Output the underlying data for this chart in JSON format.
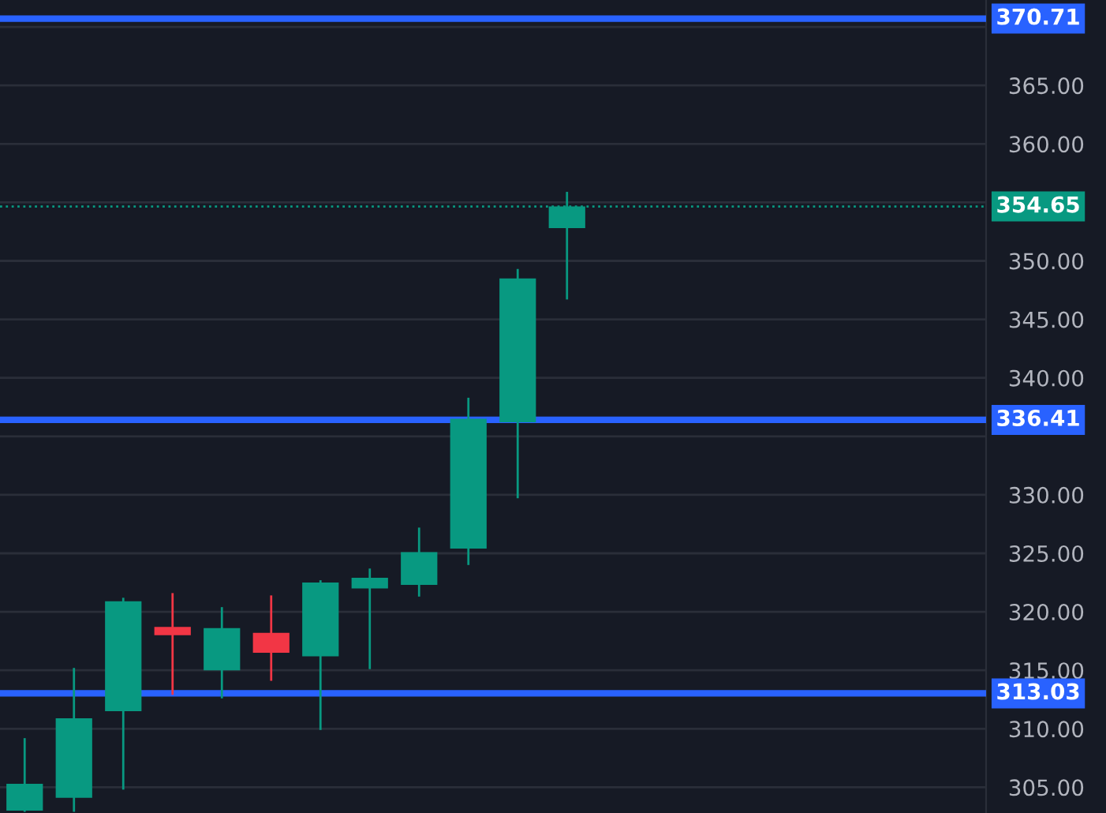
{
  "chart_data": {
    "type": "candlestick",
    "categories": [
      null,
      null,
      null,
      null,
      null,
      null,
      null,
      null,
      null,
      null,
      null,
      null,
      null,
      null,
      null,
      null,
      null,
      null,
      null,
      null
    ],
    "ohlc": [
      [
        303.0,
        309.2,
        302.9,
        305.3
      ],
      [
        304.1,
        315.2,
        302.9,
        310.9
      ],
      [
        311.5,
        321.2,
        304.8,
        320.9
      ],
      [
        318.7,
        321.6,
        312.9,
        318.0
      ],
      [
        315.0,
        320.4,
        312.6,
        318.6
      ],
      [
        318.2,
        321.4,
        314.1,
        316.5
      ],
      [
        316.2,
        322.7,
        309.9,
        322.5
      ],
      [
        322.0,
        323.7,
        315.1,
        322.9
      ],
      [
        322.3,
        327.2,
        321.3,
        325.1
      ],
      [
        325.4,
        338.3,
        324.0,
        336.5
      ],
      [
        336.2,
        349.3,
        329.7,
        348.5
      ],
      [
        352.8,
        355.9,
        346.7,
        354.65
      ],
      null,
      null,
      null,
      null,
      null,
      null,
      null,
      null
    ],
    "colors": [
      "#089981",
      "#089981",
      "#089981",
      "#f23645",
      "#089981",
      "#f23645",
      "#089981",
      "#089981",
      "#089981",
      "#089981",
      "#089981",
      "#089981",
      null,
      null,
      null,
      null,
      null,
      null,
      null,
      null
    ],
    "ylim": [
      302.8,
      372.3
    ],
    "yticks": [
      {
        "value": 305,
        "label": "305.00"
      },
      {
        "value": 310,
        "label": "310.00"
      },
      {
        "value": 315,
        "label": "315.00"
      },
      {
        "value": 320,
        "label": "320.00"
      },
      {
        "value": 325,
        "label": "325.00"
      },
      {
        "value": 330,
        "label": "330.00"
      },
      {
        "value": 335,
        "label": null
      },
      {
        "value": 340,
        "label": "340.00"
      },
      {
        "value": 345,
        "label": "345.00"
      },
      {
        "value": 350,
        "label": "350.00"
      },
      {
        "value": 355,
        "label": null
      },
      {
        "value": 360,
        "label": "360.00"
      },
      {
        "value": 365,
        "label": "365.00"
      },
      {
        "value": 370,
        "label": null
      }
    ],
    "grid": "y",
    "tick_labels": "y",
    "ref_lines": [
      {
        "axis": "y",
        "value": 370.71,
        "label": "370.71",
        "color": "#2962ff",
        "line_style": "solid"
      },
      {
        "axis": "y",
        "value": 336.41,
        "label": "336.41",
        "color": "#2962ff",
        "line_style": "solid"
      },
      {
        "axis": "y",
        "value": 313.03,
        "label": "313.03",
        "color": "#2962ff",
        "line_style": "solid"
      },
      {
        "axis": "y",
        "value": 354.65,
        "label": "354.65",
        "color": "#089981",
        "line_style": "dotted"
      }
    ]
  }
}
